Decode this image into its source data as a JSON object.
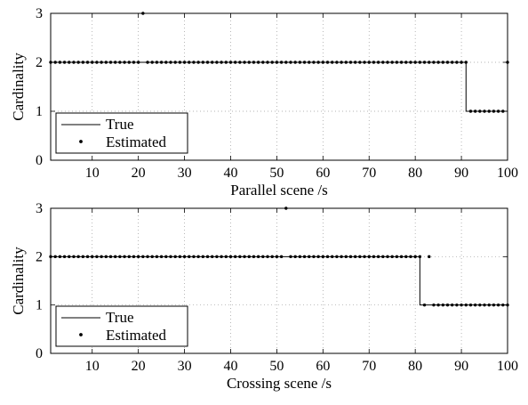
{
  "chart_data": [
    {
      "type": "line",
      "title": "",
      "xlabel": "Parallel scene /s",
      "ylabel": "Cardinality",
      "xlim": [
        1,
        100
      ],
      "ylim": [
        0,
        3
      ],
      "xticks": [
        10,
        20,
        30,
        40,
        50,
        60,
        70,
        80,
        90,
        100
      ],
      "yticks": [
        0,
        1,
        2,
        3
      ],
      "grid": true,
      "legend_position": "bottom-left",
      "legend": [
        "True",
        "Estimated"
      ],
      "series": [
        {
          "name": "True",
          "style": "solid-line",
          "color": "#000000",
          "segments": [
            {
              "x_start": 1,
              "x_end": 91,
              "y": 2
            },
            {
              "x_start": 91,
              "x_end": 100,
              "y": 1
            }
          ]
        },
        {
          "name": "Estimated",
          "style": "dots",
          "color": "#000000",
          "x_range": [
            1,
            100
          ],
          "baseline": [
            {
              "x_start": 1,
              "x_end": 91,
              "y": 2
            },
            {
              "x_start": 92,
              "x_end": 100,
              "y": 1
            }
          ],
          "exceptions": [
            {
              "x": 21,
              "y": 3
            },
            {
              "x": 100,
              "y": 2
            }
          ]
        }
      ]
    },
    {
      "type": "line",
      "title": "",
      "xlabel": "Crossing scene /s",
      "ylabel": "Cardinality",
      "xlim": [
        1,
        100
      ],
      "ylim": [
        0,
        3
      ],
      "xticks": [
        10,
        20,
        30,
        40,
        50,
        60,
        70,
        80,
        90,
        100
      ],
      "yticks": [
        0,
        1,
        2,
        3
      ],
      "grid": true,
      "legend_position": "bottom-left",
      "legend": [
        "True",
        "Estimated"
      ],
      "series": [
        {
          "name": "True",
          "style": "solid-line",
          "color": "#000000",
          "segments": [
            {
              "x_start": 1,
              "x_end": 81,
              "y": 2
            },
            {
              "x_start": 81,
              "x_end": 100,
              "y": 1
            }
          ]
        },
        {
          "name": "Estimated",
          "style": "dots",
          "color": "#000000",
          "x_range": [
            1,
            100
          ],
          "baseline": [
            {
              "x_start": 1,
              "x_end": 81,
              "y": 2
            },
            {
              "x_start": 82,
              "x_end": 100,
              "y": 1
            }
          ],
          "exceptions": [
            {
              "x": 52,
              "y": 3
            },
            {
              "x": 83,
              "y": 2
            }
          ]
        }
      ]
    }
  ]
}
